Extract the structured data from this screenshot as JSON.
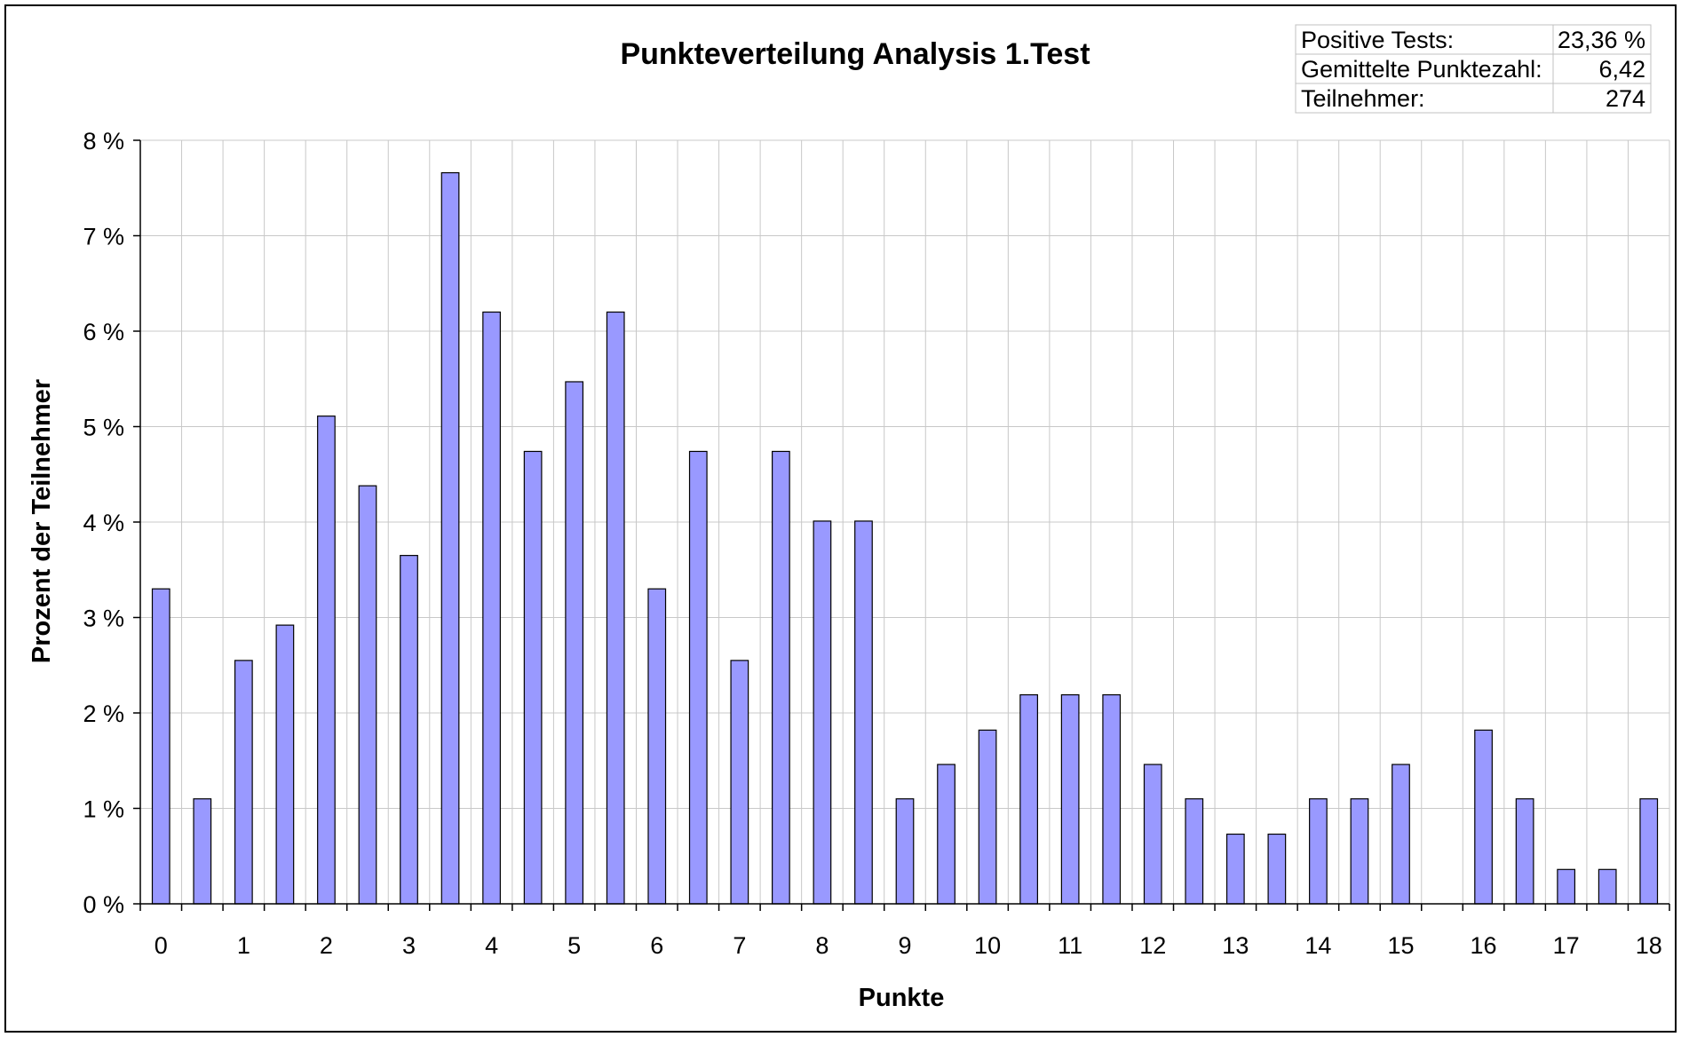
{
  "chart_data": {
    "type": "bar",
    "title": "Punkteverteilung Analysis 1.Test",
    "xlabel": "Punkte",
    "ylabel": "Prozent der Teilnehmer",
    "ylim": [
      0,
      8
    ],
    "yticks": [
      "0 %",
      "1 %",
      "2 %",
      "3 %",
      "4 %",
      "5 %",
      "6 %",
      "7 %",
      "8 %"
    ],
    "xtick_labels": [
      "0",
      "1",
      "2",
      "3",
      "4",
      "5",
      "6",
      "7",
      "8",
      "9",
      "10",
      "11",
      "12",
      "13",
      "14",
      "15",
      "16",
      "17",
      "18"
    ],
    "x": [
      0,
      0.5,
      1,
      1.5,
      2,
      2.5,
      3,
      3.5,
      4,
      4.5,
      5,
      5.5,
      6,
      6.5,
      7,
      7.5,
      8,
      8.5,
      9,
      9.5,
      10,
      10.5,
      11,
      11.5,
      12,
      12.5,
      13,
      13.5,
      14,
      14.5,
      15,
      15.5,
      16,
      16.5,
      17,
      17.5,
      18
    ],
    "values": [
      3.3,
      1.1,
      2.55,
      2.92,
      5.11,
      4.38,
      3.65,
      7.66,
      6.2,
      4.74,
      5.47,
      6.2,
      3.3,
      4.74,
      2.55,
      4.74,
      4.01,
      4.01,
      1.1,
      1.46,
      1.82,
      2.19,
      2.19,
      2.19,
      1.46,
      1.1,
      0.73,
      0.73,
      1.1,
      1.1,
      1.46,
      0,
      1.82,
      1.1,
      0.36,
      0.36,
      1.1
    ],
    "grid": true,
    "bar_color": "#9999ff",
    "bar_edge_color": "#000000"
  },
  "stats_table": {
    "rows": [
      {
        "label": "Positive Tests:",
        "value": "23,36 %"
      },
      {
        "label": "Gemittelte Punktezahl:",
        "value": "6,42"
      },
      {
        "label": "Teilnehmer:",
        "value": "274"
      }
    ]
  }
}
